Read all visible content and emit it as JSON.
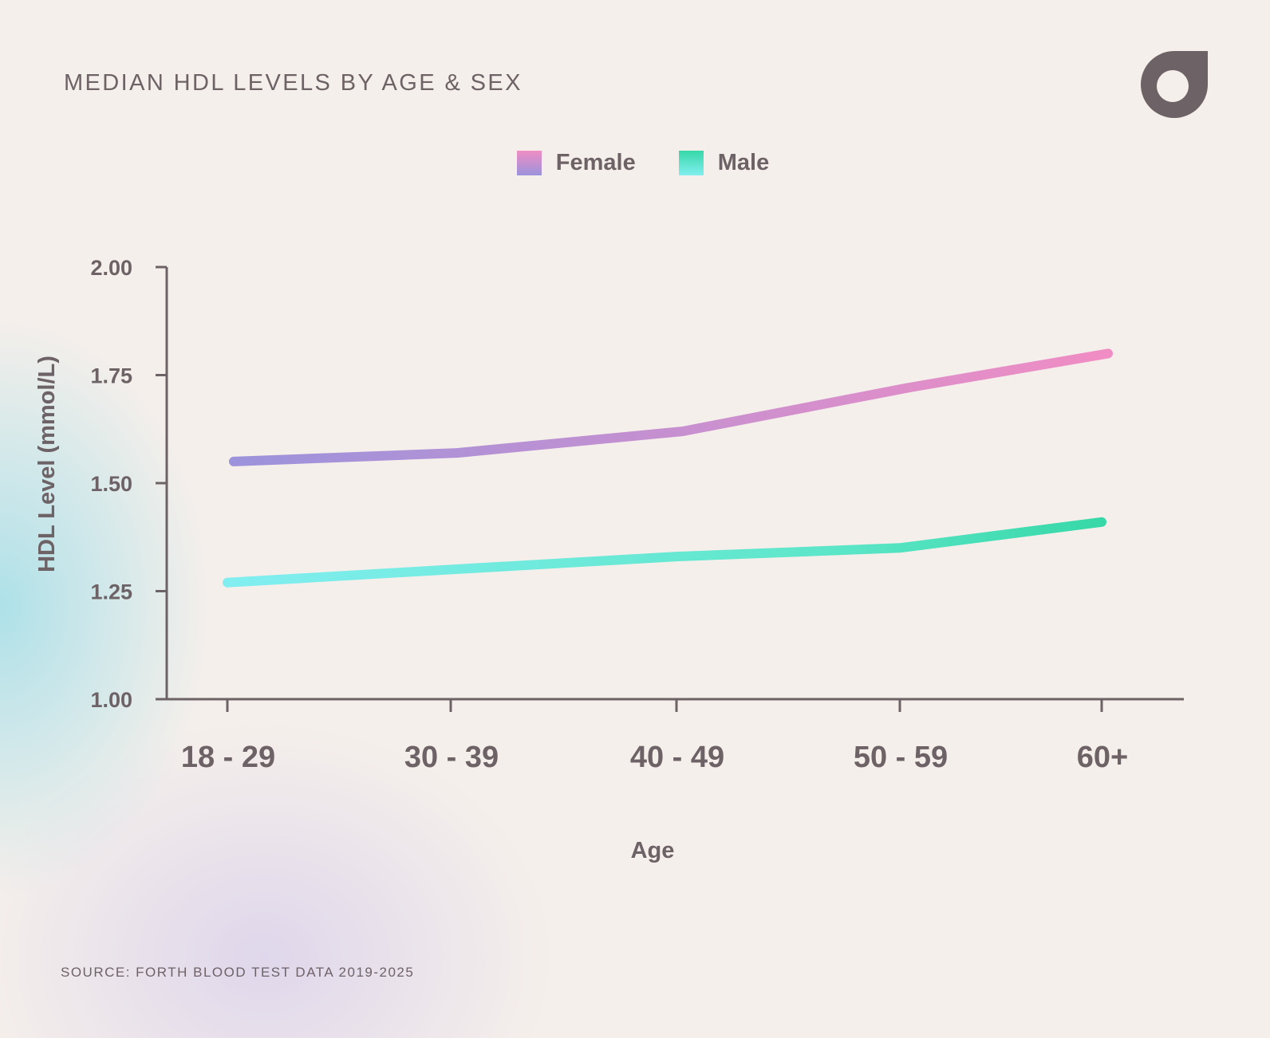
{
  "colors": {
    "text": "#6d6266",
    "axis": "#6d6266",
    "female_start": "#9b93dc",
    "female_end": "#f08dc4",
    "male_start": "#82eef0",
    "male_end": "#37d8a8",
    "background": "#f5efeb"
  },
  "logo": {
    "icon": "brand-drop-icon"
  },
  "chart_data": {
    "type": "line",
    "title": "MEDIAN HDL LEVELS BY AGE & SEX",
    "xlabel": "Age",
    "ylabel": "HDL Level (mmol/L)",
    "categories": [
      "18 - 29",
      "30 - 39",
      "40 - 49",
      "50 - 59",
      "60+"
    ],
    "ylim": [
      1.0,
      2.0
    ],
    "yticks": [
      "2.00",
      "1.75",
      "1.50",
      "1.25",
      "1.00"
    ],
    "legend_position": "top-center",
    "grid": false,
    "series": [
      {
        "name": "Female",
        "values": [
          1.55,
          1.57,
          1.62,
          1.72,
          1.8
        ]
      },
      {
        "name": "Male",
        "values": [
          1.27,
          1.3,
          1.33,
          1.35,
          1.41
        ]
      }
    ]
  },
  "source": "SOURCE: FORTH BLOOD TEST DATA 2019-2025"
}
